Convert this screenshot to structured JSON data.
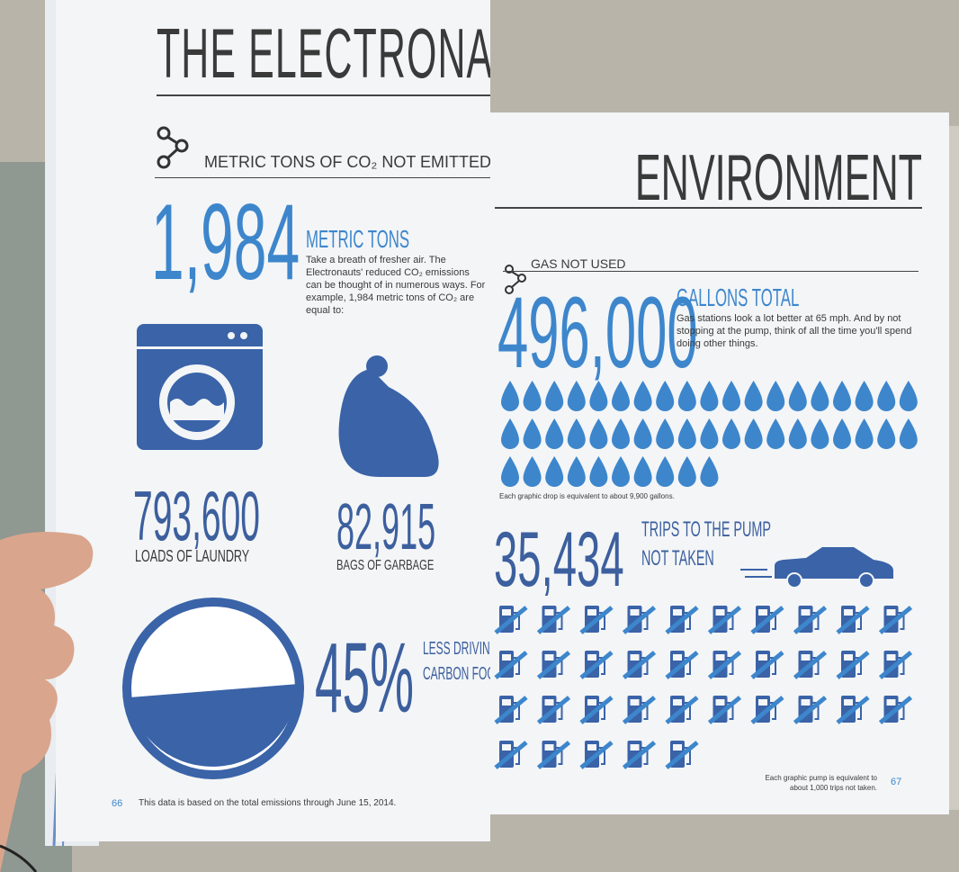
{
  "left_page": {
    "title": "THE ELECTRONAUT EFFECT",
    "section": "METRIC TONS OF CO₂ NOT EMITTED",
    "big_number": "1,984",
    "unit": "METRIC TONS",
    "body": "Take a breath of fresher air. The Electronauts' reduced CO₂ emissions can be thought of in numerous ways. For example, 1,984 metric tons of CO₂ are equal to:",
    "stats": [
      {
        "value": "793,600",
        "label": "LOADS OF LAUNDRY"
      },
      {
        "value": "82,915",
        "label": "BAGS OF GARBAGE"
      }
    ],
    "percent": "45%",
    "percent_label": [
      "LESS DRIVING",
      "CARBON FOOTPRINT"
    ],
    "page_number": "66",
    "footnote": "This data is based on the total emissions through June 15, 2014."
  },
  "right_page": {
    "title": "ENVIRONMENT",
    "section": "GAS NOT USED",
    "big_number": "496,000",
    "unit": "GALLONS TOTAL",
    "body": "Gas stations look a lot better at 65 mph. And by not stopping at the pump, think of all the time you'll spend doing other things.",
    "drop_note": "Each graphic drop is equivalent to about 9,900 gallons.",
    "trips_number": "35,434",
    "trips_label": [
      "TRIPS TO THE PUMP",
      "NOT TAKEN"
    ],
    "pump_note": [
      "Each graphic pump is equivalent to",
      "about 1,000 trips not taken."
    ],
    "page_number": "67"
  }
}
